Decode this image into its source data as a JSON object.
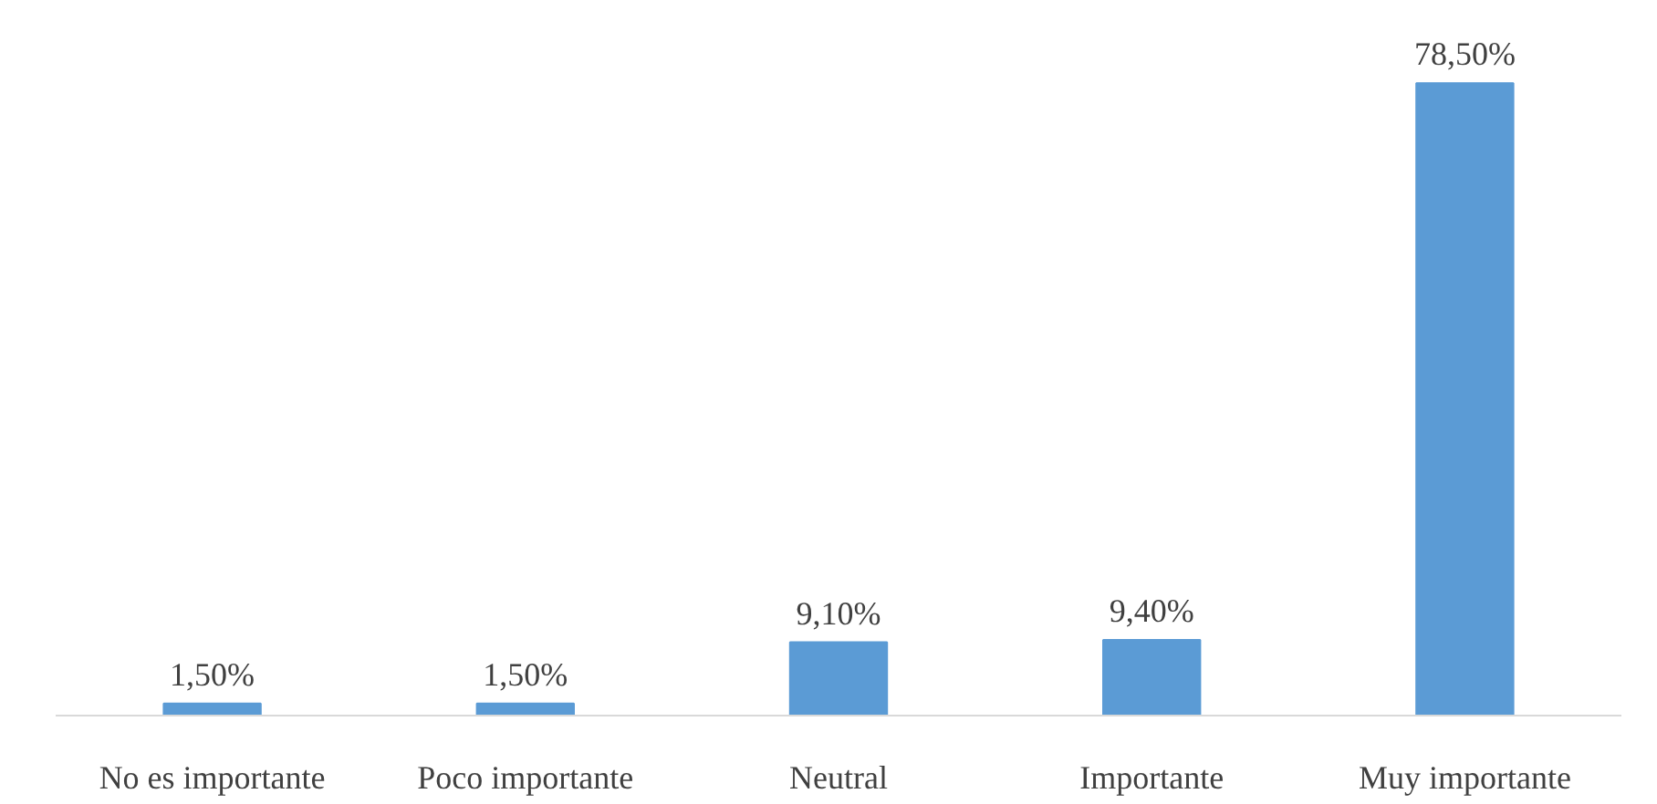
{
  "chart_data": {
    "type": "bar",
    "categories": [
      "No es importante",
      "Poco importante",
      "Neutral",
      "Importante",
      "Muy importante"
    ],
    "values": [
      1.5,
      1.5,
      9.1,
      9.4,
      78.5
    ],
    "value_labels": [
      "1,50%",
      "1,50%",
      "9,10%",
      "9,40%",
      "78,50%"
    ],
    "color": "#5b9bd5"
  }
}
